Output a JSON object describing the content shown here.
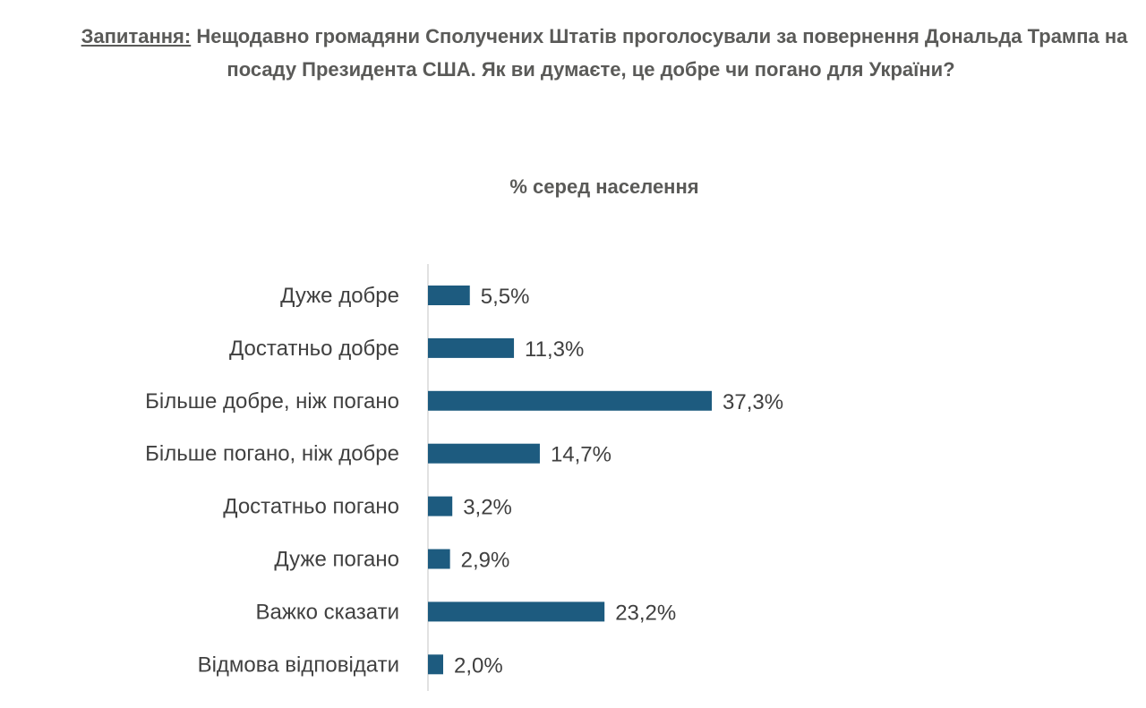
{
  "chart_data": {
    "type": "bar",
    "orientation": "horizontal",
    "title_label": "Запитання:",
    "title": "Нещодавно громадяни Сполучених Штатів проголосували за повернення Дональда Трампа на посаду Президента США. Як ви думаєте, це добре чи погано для України?",
    "subtitle": "% серед населення",
    "categories": [
      "Дуже добре",
      "Достатньо добре",
      "Більше добре, ніж погано",
      "Більше погано, ніж добре",
      "Достатньо погано",
      "Дуже погано",
      "Важко сказати",
      "Відмова відповідати"
    ],
    "values": [
      5.5,
      11.3,
      37.3,
      14.7,
      3.2,
      2.9,
      23.2,
      2.0
    ],
    "value_labels": [
      "5,5%",
      "11,3%",
      "37,3%",
      "14,7%",
      "3,2%",
      "2,9%",
      "23,2%",
      "2,0%"
    ],
    "bar_color": "#1d5b7f",
    "xlabel": "",
    "ylabel": "",
    "xlim": [
      0,
      40
    ],
    "grid": false,
    "legend": "none"
  }
}
